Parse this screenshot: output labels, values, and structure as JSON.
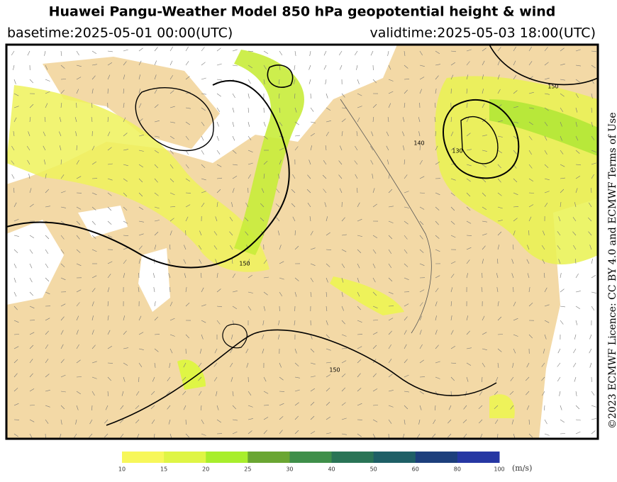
{
  "header": {
    "title": "Huawei Pangu-Weather Model 850 hPa geopotential height & wind",
    "basetime": "basetime:2025-05-01 00:00(UTC)",
    "validtime": "validtime:2025-05-03 18:00(UTC)"
  },
  "contour_labels": [
    "150",
    "150",
    "140",
    "150",
    "130"
  ],
  "colorbar": {
    "ticks": [
      "10",
      "15",
      "20",
      "25",
      "30",
      "40",
      "50",
      "60",
      "80",
      "100"
    ],
    "colors": [
      "#f7f75a",
      "#dff545",
      "#a8ee2c",
      "#6aa632",
      "#3f8f4a",
      "#2a7456",
      "#1f5f66",
      "#1d3f7c",
      "#2637a3"
    ],
    "unit": "(m/s)"
  },
  "credit": "©2023 ECMWF Licence: CC BY 4.0 and ECMWF Terms of Use"
}
